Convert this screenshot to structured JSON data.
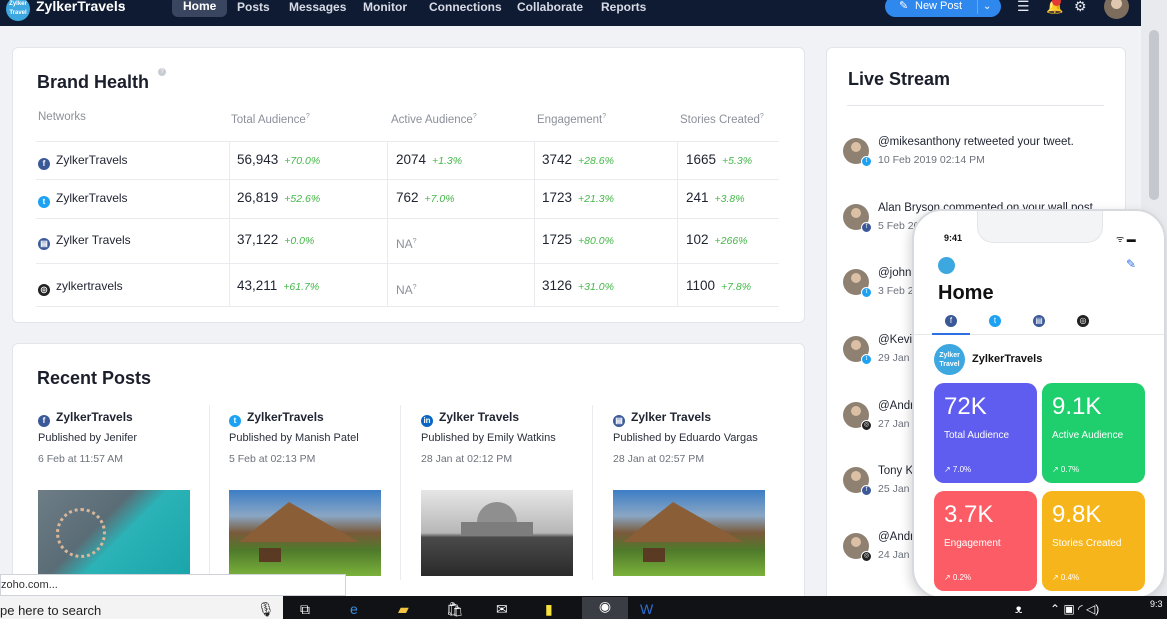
{
  "topbar": {
    "logo_text": "Zylker Travel",
    "brand": "ZylkerTravels",
    "nav": [
      "Home",
      "Posts",
      "Messages",
      "Monitor",
      "Connections",
      "Collaborate",
      "Reports"
    ],
    "new_post": "New Post"
  },
  "brand_health": {
    "title": "Brand Health",
    "columns": [
      "Networks",
      "Total Audience",
      "Active Audience",
      "Engagement",
      "Stories Created"
    ],
    "rows": [
      {
        "network": "ZylkerTravels",
        "icon": "facebook-icon",
        "total": "56,943",
        "total_pct": "+70.0%",
        "active": "2074",
        "active_pct": "+1.3%",
        "eng": "3742",
        "eng_pct": "+28.6%",
        "stories": "1665",
        "stories_pct": "+5.3%"
      },
      {
        "network": "ZylkerTravels",
        "icon": "twitter-icon",
        "total": "26,819",
        "total_pct": "+52.6%",
        "active": "762",
        "active_pct": "+7.0%",
        "eng": "1723",
        "eng_pct": "+21.3%",
        "stories": "241",
        "stories_pct": "+3.8%"
      },
      {
        "network": "Zylker Travels",
        "icon": "google-business-icon",
        "total": "37,122",
        "total_pct": "+0.0%",
        "active": "NA",
        "active_pct": "",
        "eng": "1725",
        "eng_pct": "+80.0%",
        "stories": "102",
        "stories_pct": "+266%"
      },
      {
        "network": "zylkertravels",
        "icon": "instagram-icon",
        "total": "43,211",
        "total_pct": "+61.7%",
        "active": "NA",
        "active_pct": "",
        "eng": "3126",
        "eng_pct": "+31.0%",
        "stories": "1100",
        "stories_pct": "+7.8%"
      }
    ]
  },
  "recent_posts": {
    "title": "Recent Posts",
    "posts": [
      {
        "network": "ZylkerTravels",
        "icon": "facebook-icon",
        "by": "Published by Jenifer",
        "date": "6 Feb at 11:57 AM"
      },
      {
        "network": "ZylkerTravels",
        "icon": "twitter-icon",
        "by": "Published by Manish Patel",
        "date": "5 Feb at 02:13 PM"
      },
      {
        "network": "Zylker Travels",
        "icon": "linkedin-icon",
        "by": "Published by Emily Watkins",
        "date": "28 Jan at 02:12 PM"
      },
      {
        "network": "Zylker Travels",
        "icon": "google-business-icon",
        "by": "Published by Eduardo Vargas",
        "date": "28 Jan at 02:57 PM"
      }
    ]
  },
  "live_stream": {
    "title": "Live Stream",
    "items": [
      {
        "text": "@mikesanthony retweeted your tweet.",
        "date": "10 Feb 2019 02:14 PM"
      },
      {
        "text": "Alan Bryson commented on your wall post",
        "date": "5 Feb 20"
      },
      {
        "text": "@john",
        "date": "3 Feb 2"
      },
      {
        "text": "@Kevi",
        "date": "29 Jan"
      },
      {
        "text": "@Andr",
        "date": "27 Jan"
      },
      {
        "text": "Tony K",
        "date": "25 Jan"
      },
      {
        "text": "@Andr",
        "date": "24 Jan"
      }
    ]
  },
  "phone": {
    "time": "9:41",
    "home": "Home",
    "account": "ZylkerTravels",
    "avatar_text": "Zylker Travel",
    "tiles": [
      {
        "value": "72K",
        "label": "Total Audience",
        "change": "↗ 7.0%",
        "color": "#5f5cf0"
      },
      {
        "value": "9.1K",
        "label": "Active Audience",
        "change": "↗ 0.7%",
        "color": "#1fce6d"
      },
      {
        "value": "3.7K",
        "label": "Engagement",
        "change": "↗ 0.2%",
        "color": "#fc5c65"
      },
      {
        "value": "9.8K",
        "label": "Stories Created",
        "change": "↗ 0.4%",
        "color": "#f7b51c"
      }
    ]
  },
  "status_tip": "zoho.com...",
  "taskbar": {
    "search_placeholder": "pe here to search",
    "clock": "9:3"
  }
}
